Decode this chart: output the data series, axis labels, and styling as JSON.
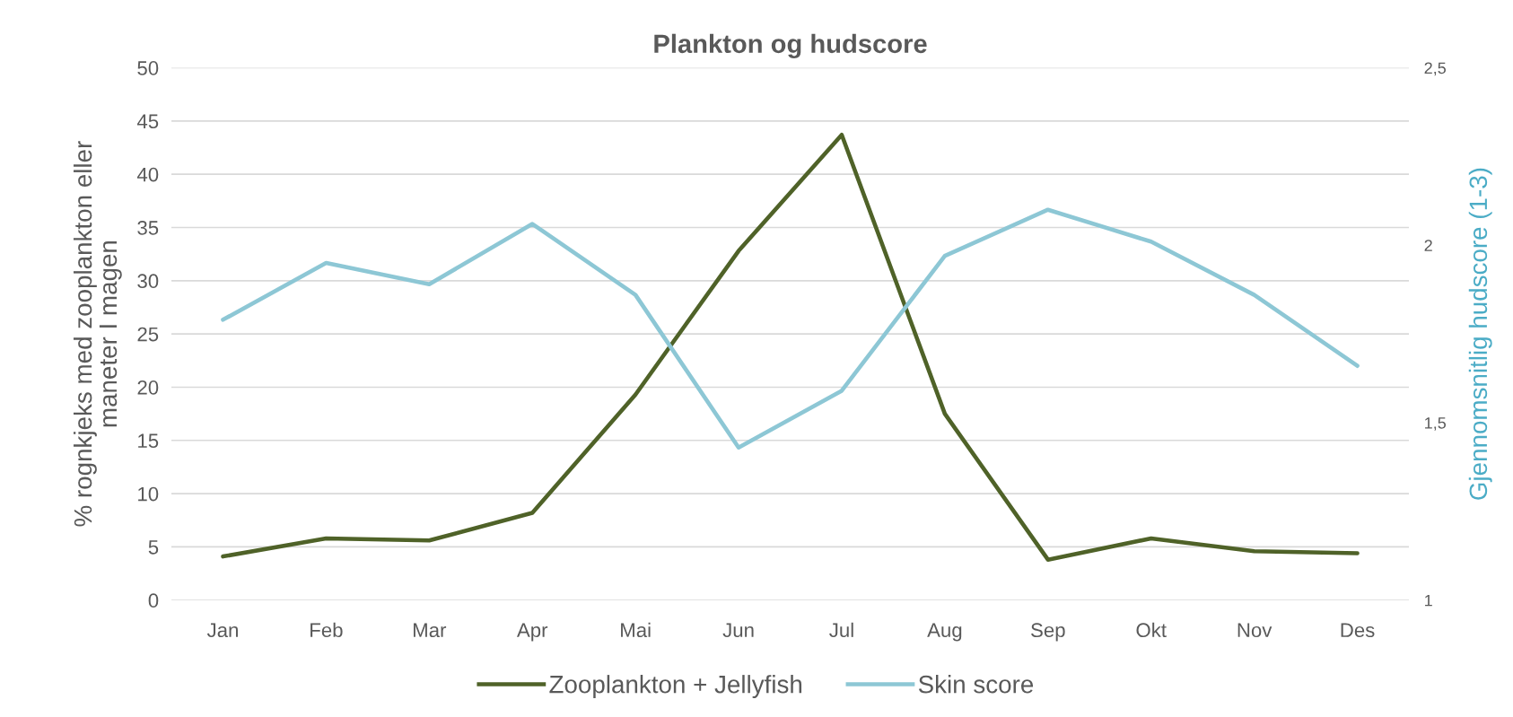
{
  "chart_data": {
    "type": "line",
    "title": "Plankton og hudscore",
    "ylabel": "% rognkjeks med zooplankton eller\nmaneter I magen",
    "y2label": "Gjennomsnitlig hudscore (1-3)",
    "categories": [
      "Jan",
      "Feb",
      "Mar",
      "Apr",
      "Mai",
      "Jun",
      "Jul",
      "Aug",
      "Sep",
      "Okt",
      "Nov",
      "Des"
    ],
    "series": [
      {
        "name": "Zooplankton + Jellyfish",
        "color": "#4f6228",
        "values": [
          4.1,
          5.8,
          5.6,
          8.2,
          19.3,
          32.8,
          43.7,
          17.5,
          3.8,
          5.8,
          4.6,
          4.4
        ]
      },
      {
        "name": "Skin score",
        "color": "#8dc7d5",
        "axis": "y2",
        "values": [
          1.79,
          1.95,
          1.89,
          2.06,
          1.86,
          1.43,
          1.59,
          1.97,
          2.1,
          2.01,
          1.86,
          1.66
        ]
      }
    ],
    "ylim": [
      0,
      50
    ],
    "yticks": [
      0,
      5,
      10,
      15,
      20,
      25,
      30,
      35,
      40,
      45,
      50
    ],
    "y2lim": [
      1,
      2.5
    ],
    "y2ticks": [
      1,
      {
        "value": 1.5,
        "label": "1,5"
      },
      2,
      {
        "value": 2.5,
        "label": "2,5"
      }
    ],
    "grid": "y",
    "legend": "bottom",
    "marker": "none",
    "line_style": "solid"
  }
}
